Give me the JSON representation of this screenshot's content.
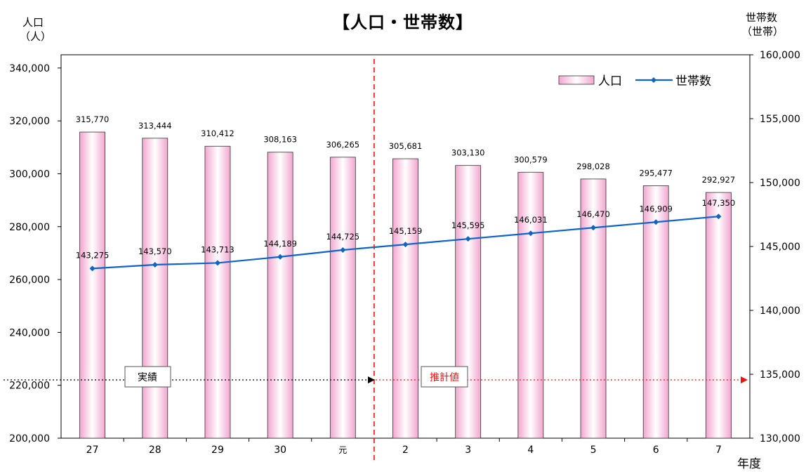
{
  "chart_data": {
    "type": "bar",
    "title": "【人口・世帯数】",
    "ylabel_left": [
      "人口",
      "（人）"
    ],
    "ylabel_right": [
      "世帯数",
      "（世帯）"
    ],
    "xlabel": "年度",
    "categories": [
      "27",
      "28",
      "29",
      "30",
      "元",
      "2",
      "3",
      "4",
      "5",
      "6",
      "7"
    ],
    "ylim_left": [
      200000,
      345000
    ],
    "ylim_right": [
      130000,
      160000
    ],
    "yticks_left": [
      200000,
      220000,
      240000,
      260000,
      280000,
      300000,
      320000,
      340000
    ],
    "yticks_right": [
      130000,
      135000,
      140000,
      145000,
      150000,
      155000,
      160000
    ],
    "series": [
      {
        "name": "人口",
        "type": "bar",
        "axis": "left",
        "values": [
          315770,
          313444,
          310412,
          308163,
          306265,
          305681,
          303130,
          300579,
          298028,
          295477,
          292927
        ]
      },
      {
        "name": "世帯数",
        "type": "line",
        "axis": "right",
        "values": [
          143275,
          143570,
          143713,
          144189,
          144725,
          145159,
          145595,
          146031,
          146470,
          146909,
          147350
        ]
      }
    ],
    "legend": "top-right",
    "annotations": {
      "actual": "実績",
      "forecast": "推計値"
    },
    "colors": {
      "bar_edge": "#f2a6cf",
      "bar_mid": "#ffffff",
      "line": "#0f64c8",
      "actual_arrow": "#000000",
      "forecast_arrow": "#ee1111",
      "divider": "#ee1111"
    }
  }
}
